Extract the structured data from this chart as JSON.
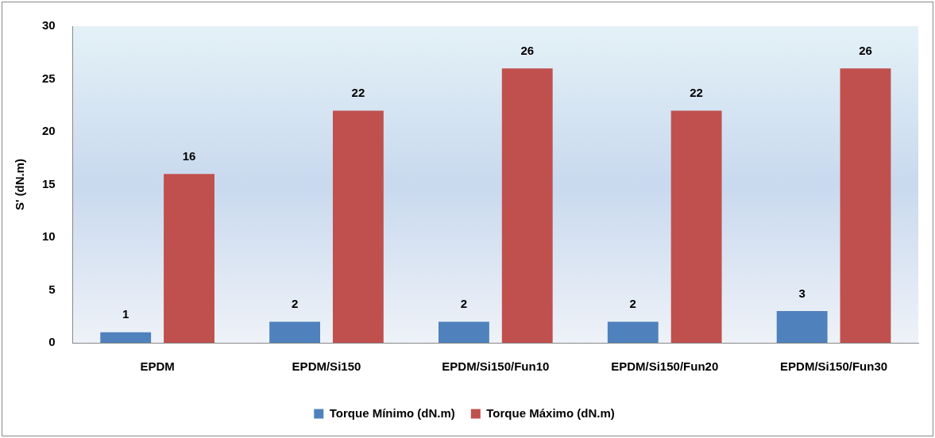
{
  "chart_data": {
    "type": "bar",
    "ylabel": "S' (dN.m)",
    "categories": [
      "EPDM",
      "EPDM/Si150",
      "EPDM/Si150/Fun10",
      "EPDM/Si150/Fun20",
      "EPDM/Si150/Fun30"
    ],
    "series": [
      {
        "name": "Torque Mínimo (dN.m)",
        "color": "#4f81bd",
        "values": [
          1,
          2,
          2,
          2,
          3
        ]
      },
      {
        "name": "Torque Máximo (dN.m)",
        "color": "#c0504d",
        "values": [
          16,
          22,
          26,
          22,
          26
        ]
      }
    ],
    "ylim": [
      0,
      30
    ],
    "yticks": [
      0,
      5,
      10,
      15,
      20,
      25,
      30
    ],
    "grid": false,
    "legend": "bottom",
    "data_labels": true
  }
}
